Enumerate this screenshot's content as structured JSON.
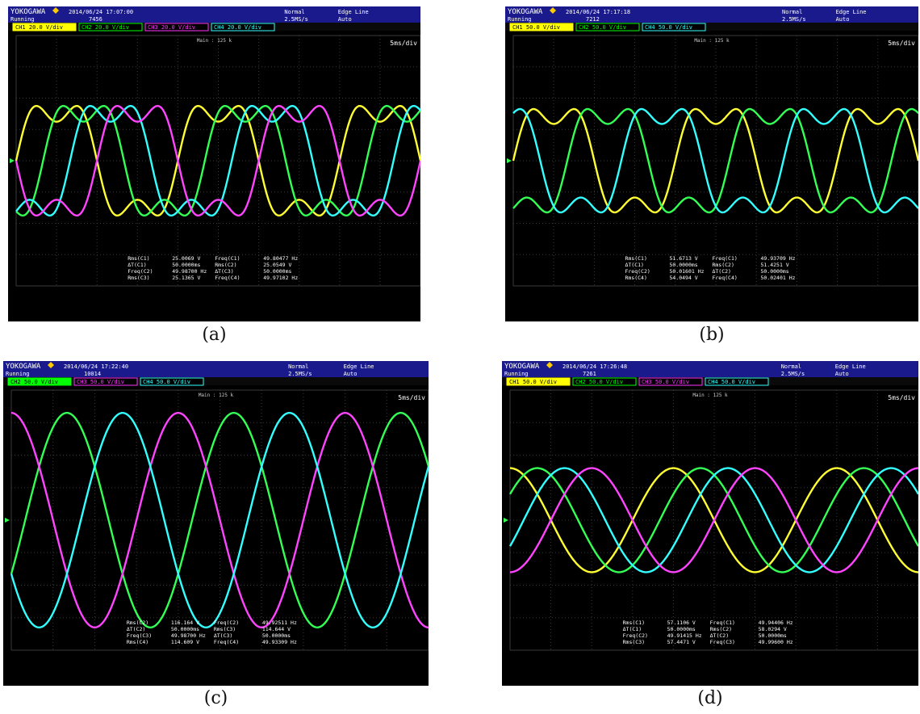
{
  "chart_data": [
    {
      "type": "line",
      "caption": "(a)",
      "header": {
        "brand": "YOKOGAWA",
        "status": "Running",
        "timestamp": "2014/06/24 17:07:00",
        "count": "7456",
        "mode": "Normal",
        "sample_rate": "2.5MS/s",
        "trigger": "Edge Line",
        "trigger_mode": "Auto"
      },
      "channel_tags": [
        {
          "label": "CH1 20.0 V/div",
          "color": "#ffff00"
        },
        {
          "label": "CH2 20.0 V/div",
          "color": "#00ff00"
        },
        {
          "label": "CH3 20.0 V/div",
          "color": "#ff33ff"
        },
        {
          "label": "CH4 20.0 V/div",
          "color": "#33ffff"
        }
      ],
      "main_label": "Main : 125 k",
      "timebase": "5ms/div",
      "waveform": "stepped",
      "period_ms": 20,
      "series": [
        {
          "color": "#ffff33",
          "amplitude_div": 1.75,
          "phase_deg": 0
        },
        {
          "color": "#33ff55",
          "amplitude_div": 1.75,
          "phase_deg": -60
        },
        {
          "color": "#33ffff",
          "amplitude_div": 1.75,
          "phase_deg": -120
        },
        {
          "color": "#ff44ff",
          "amplitude_div": 1.75,
          "phase_deg": -180
        }
      ],
      "measurements": [
        [
          "Rms(C1)",
          "25.0069 V",
          "Freq(C1)",
          "49.80477 Hz"
        ],
        [
          "ΔT(C1)",
          "50.0000ms",
          "Rms(C2)",
          "25.0549 V"
        ],
        [
          "Freq(C2)",
          "49.98700 Hz",
          "ΔT(C3)",
          "50.0000ms"
        ],
        [
          "Rms(C3)",
          "25.1365 V",
          "Freq(C4)",
          "49.97102 Hz"
        ]
      ]
    },
    {
      "type": "line",
      "caption": "(b)",
      "header": {
        "brand": "YOKOGAWA",
        "status": "Running",
        "timestamp": "2014/06/24 17:17:18",
        "count": "7212",
        "mode": "Normal",
        "sample_rate": "2.5MS/s",
        "trigger": "Edge Line",
        "trigger_mode": "Auto"
      },
      "channel_tags": [
        {
          "label": "CH1 50.0 V/div",
          "color": "#ffff00"
        },
        {
          "label": "CH2 50.0 V/div",
          "color": "#00ff00"
        },
        {
          "label": "CH4 50.0 V/div",
          "color": "#33ffff"
        }
      ],
      "main_label": "Main : 125 k",
      "timebase": "5ms/div",
      "waveform": "stepped",
      "period_ms": 20,
      "series": [
        {
          "color": "#ffff33",
          "amplitude_div": 1.65,
          "phase_deg": 0
        },
        {
          "color": "#33ff55",
          "amplitude_div": 1.65,
          "phase_deg": -120
        },
        {
          "color": "#33ffff",
          "amplitude_div": 1.65,
          "phase_deg": -240
        }
      ],
      "measurements": [
        [
          "Rms(C1)",
          "51.6713 V",
          "Freq(C1)",
          "49.93709 Hz"
        ],
        [
          "ΔT(C1)",
          "50.0000ms",
          "Rms(C2)",
          "51.4251 V"
        ],
        [
          "Freq(C2)",
          "50.01601 Hz",
          "ΔT(C2)",
          "50.0000ms"
        ],
        [
          "Rms(C4)",
          "54.0494 V",
          "Freq(C4)",
          "50.02401 Hz"
        ]
      ]
    },
    {
      "type": "line",
      "caption": "(c)",
      "header": {
        "brand": "YOKOGAWA",
        "status": "Running",
        "timestamp": "2014/06/24 17:22:40",
        "count": "10014",
        "mode": "Normal",
        "sample_rate": "2.5MS/s",
        "trigger": "Edge Line",
        "trigger_mode": "Auto"
      },
      "channel_tags": [
        {
          "label": "CH2 50.0 V/div",
          "color": "#00ff00"
        },
        {
          "label": "CH3 50.0 V/div",
          "color": "#ff33ff"
        },
        {
          "label": "CH4 50.0 V/div",
          "color": "#33ffff"
        }
      ],
      "main_label": "Main : 125 k",
      "timebase": "5ms/div",
      "waveform": "sine",
      "period_ms": 20,
      "series": [
        {
          "color": "#33ff55",
          "amplitude_div": 3.3,
          "phase_deg": -30
        },
        {
          "color": "#ff44ff",
          "amplitude_div": 3.3,
          "phase_deg": 90
        },
        {
          "color": "#33ffff",
          "amplitude_div": 3.3,
          "phase_deg": 210
        }
      ],
      "measurements": [
        [
          "Rms(C2)",
          "116.164 V",
          "Freq(C2)",
          "49.92511 Hz"
        ],
        [
          "ΔT(C2)",
          "50.0000ms",
          "Rms(C3)",
          "114.644 V"
        ],
        [
          "Freq(C3)",
          "49.98700 Hz",
          "ΔT(C3)",
          "50.0000ms"
        ],
        [
          "Rms(C4)",
          "114.609 V",
          "Freq(C4)",
          "49.93309 Hz"
        ]
      ]
    },
    {
      "type": "line",
      "caption": "(d)",
      "header": {
        "brand": "YOKOGAWA",
        "status": "Running",
        "timestamp": "2014/06/24 17:26:48",
        "count": "7261",
        "mode": "Normal",
        "sample_rate": "2.5MS/s",
        "trigger": "Edge Line",
        "trigger_mode": "Auto"
      },
      "channel_tags": [
        {
          "label": "CH1 50.0 V/div",
          "color": "#ffff00"
        },
        {
          "label": "CH2 50.0 V/div",
          "color": "#00ff00"
        },
        {
          "label": "CH3 50.0 V/div",
          "color": "#ff33ff"
        },
        {
          "label": "CH4 50.0 V/div",
          "color": "#33ffff"
        }
      ],
      "main_label": "Main : 125 k",
      "timebase": "5ms/div",
      "waveform": "sine",
      "period_ms": 20,
      "series": [
        {
          "color": "#ffff33",
          "amplitude_div": 1.6,
          "phase_deg": 90
        },
        {
          "color": "#33ff55",
          "amplitude_div": 1.6,
          "phase_deg": 30
        },
        {
          "color": "#33ffff",
          "amplitude_div": 1.6,
          "phase_deg": -30
        },
        {
          "color": "#ff44ff",
          "amplitude_div": 1.6,
          "phase_deg": -90
        }
      ],
      "measurements": [
        [
          "Rms(C1)",
          "57.1106 V",
          "Freq(C1)",
          "49.94406 Hz"
        ],
        [
          "ΔT(C1)",
          "50.0000ms",
          "Rms(C2)",
          "58.0294 V"
        ],
        [
          "Freq(C2)",
          "49.91415 Hz",
          "ΔT(C2)",
          "50.0000ms"
        ],
        [
          "Rms(C3)",
          "57.4471 V",
          "Freq(C3)",
          "49.99600 Hz"
        ]
      ]
    }
  ]
}
